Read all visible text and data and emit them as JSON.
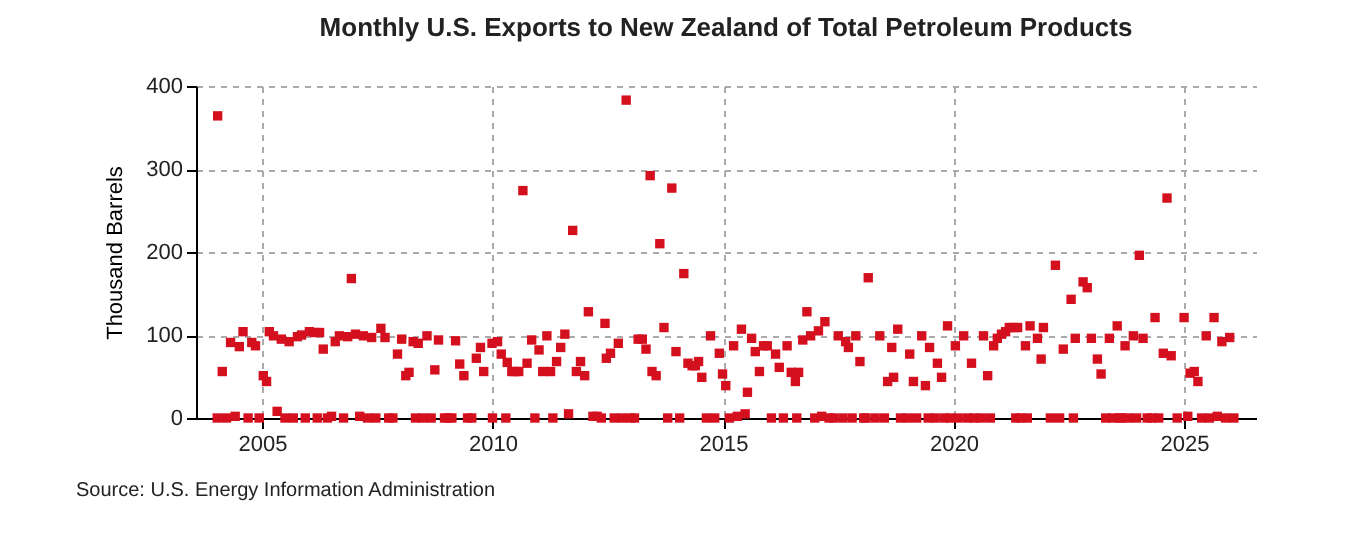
{
  "chart_data": {
    "type": "scatter",
    "title": "Monthly U.S. Exports to New Zealand of Total Petroleum Products",
    "ylabel": "Thousand Barrels",
    "annotations": [
      "Source: U.S. Energy Information Administration"
    ],
    "x": [
      2004.03,
      2004.04,
      2004.14,
      2004.23,
      2004.32,
      2004.42,
      2004.51,
      2004.59,
      2004.7,
      2004.78,
      2004.86,
      2004.94,
      2005.03,
      2005.1,
      2005.16,
      2005.25,
      2005.33,
      2005.42,
      2005.5,
      2005.59,
      2005.68,
      2005.77,
      2005.86,
      2005.94,
      2006.03,
      2006.14,
      2006.2,
      2006.25,
      2006.33,
      2006.42,
      2006.51,
      2006.59,
      2006.68,
      2006.77,
      2006.86,
      2006.94,
      2007.03,
      2007.12,
      2007.2,
      2007.29,
      2007.38,
      2007.47,
      2007.58,
      2007.67,
      2007.75,
      2007.84,
      2007.94,
      2008.03,
      2008.12,
      2008.19,
      2008.28,
      2008.33,
      2008.39,
      2008.49,
      2008.58,
      2008.67,
      2008.75,
      2008.83,
      2008.96,
      2009.04,
      2009.12,
      2009.2,
      2009.29,
      2009.38,
      2009.46,
      2009.55,
      2009.65,
      2009.74,
      2009.81,
      2009.99,
      2010.0,
      2010.11,
      2010.19,
      2010.29,
      2010.32,
      2010.42,
      2010.49,
      2010.57,
      2010.66,
      2010.75,
      2010.85,
      2010.92,
      2011.01,
      2011.09,
      2011.18,
      2011.26,
      2011.31,
      2011.39,
      2011.48,
      2011.57,
      2011.65,
      2011.74,
      2011.82,
      2011.91,
      2012.0,
      2012.08,
      2012.18,
      2012.27,
      2012.36,
      2012.44,
      2012.47,
      2012.56,
      2012.64,
      2012.73,
      2012.81,
      2012.9,
      2012.99,
      2013.08,
      2013.16,
      2013.25,
      2013.33,
      2013.42,
      2013.46,
      2013.55,
      2013.63,
      2013.72,
      2013.8,
      2013.89,
      2013.98,
      2014.06,
      2014.15,
      2014.24,
      2014.33,
      2014.4,
      2014.47,
      2014.54,
      2014.64,
      2014.73,
      2014.82,
      2014.92,
      2014.99,
      2015.06,
      2015.14,
      2015.23,
      2015.31,
      2015.4,
      2015.48,
      2015.53,
      2015.62,
      2015.7,
      2015.79,
      2015.88,
      2015.96,
      2016.05,
      2016.14,
      2016.22,
      2016.31,
      2016.39,
      2016.48,
      2016.57,
      2016.6,
      2016.64,
      2016.73,
      2016.82,
      2016.9,
      2016.99,
      2017.07,
      2017.14,
      2017.21,
      2017.3,
      2017.4,
      2017.5,
      2017.6,
      2017.66,
      2017.72,
      2017.8,
      2017.88,
      2017.97,
      2018.05,
      2018.1,
      2018.15,
      2018.3,
      2018.4,
      2018.5,
      2018.57,
      2018.66,
      2018.7,
      2018.79,
      2018.85,
      2019.0,
      2019.05,
      2019.13,
      2019.2,
      2019.31,
      2019.39,
      2019.45,
      2019.48,
      2019.6,
      2019.65,
      2019.74,
      2019.8,
      2019.87,
      2019.93,
      2020.04,
      2020.1,
      2020.22,
      2020.3,
      2020.39,
      2020.45,
      2020.6,
      2020.65,
      2020.74,
      2020.8,
      2020.87,
      2020.95,
      2021.04,
      2021.13,
      2021.21,
      2021.3,
      2021.35,
      2021.39,
      2021.45,
      2021.56,
      2021.6,
      2021.66,
      2021.82,
      2021.9,
      2021.95,
      2022.1,
      2022.21,
      2022.3,
      2022.38,
      2022.55,
      2022.6,
      2022.64,
      2022.81,
      2022.9,
      2022.99,
      2023.12,
      2023.2,
      2023.3,
      2023.38,
      2023.45,
      2023.55,
      2023.6,
      2023.65,
      2023.72,
      2023.8,
      2023.9,
      2023.97,
      2024.03,
      2024.11,
      2024.2,
      2024.3,
      2024.37,
      2024.45,
      2024.55,
      2024.63,
      2024.72,
      2024.85,
      2025.0,
      2025.08,
      2025.13,
      2025.22,
      2025.3,
      2025.38,
      2025.48,
      2025.55,
      2025.65,
      2025.72,
      2025.82,
      2025.9,
      2025.99,
      2026.08
    ],
    "values": [
      0,
      364,
      56,
      0,
      91,
      2,
      86,
      104,
      0,
      91,
      87,
      0,
      51,
      44,
      104,
      99,
      8,
      95,
      0,
      92,
      0,
      98,
      100,
      0,
      104,
      103,
      0,
      103,
      83,
      0,
      2,
      92,
      99,
      0,
      98,
      168,
      101,
      2,
      99,
      0,
      97,
      0,
      108,
      97,
      0,
      0,
      77,
      95,
      51,
      55,
      92,
      0,
      90,
      0,
      99,
      0,
      58,
      94,
      0,
      0,
      0,
      93,
      65,
      51,
      0,
      0,
      72,
      85,
      56,
      90,
      0,
      92,
      77,
      0,
      67,
      56,
      56,
      56,
      274,
      66,
      94,
      0,
      82,
      56,
      99,
      56,
      0,
      68,
      85,
      101,
      5,
      226,
      56,
      68,
      51,
      128,
      2,
      2,
      0,
      114,
      72,
      78,
      0,
      90,
      0,
      383,
      0,
      0,
      95,
      95,
      83,
      292,
      56,
      51,
      210,
      109,
      0,
      277,
      80,
      0,
      174,
      66,
      63,
      63,
      68,
      49,
      0,
      99,
      0,
      78,
      53,
      39,
      0,
      87,
      2,
      107,
      5,
      31,
      96,
      80,
      56,
      87,
      87,
      0,
      77,
      61,
      0,
      87,
      55,
      44,
      0,
      55,
      94,
      128,
      99,
      0,
      105,
      2,
      116,
      0,
      0,
      99,
      0,
      92,
      85,
      0,
      99,
      68,
      0,
      0,
      169,
      0,
      99,
      0,
      44,
      85,
      49,
      107,
      0,
      0,
      77,
      44,
      0,
      99,
      39,
      0,
      85,
      0,
      66,
      49,
      0,
      111,
      0,
      87,
      0,
      99,
      0,
      66,
      0,
      0,
      99,
      51,
      0,
      87,
      96,
      101,
      104,
      109,
      109,
      0,
      109,
      0,
      87,
      0,
      111,
      96,
      71,
      109,
      0,
      184,
      0,
      83,
      143,
      0,
      96,
      164,
      157,
      96,
      71,
      53,
      0,
      96,
      0,
      111,
      0,
      0,
      87,
      0,
      99,
      0,
      196,
      96,
      0,
      0,
      121,
      0,
      78,
      265,
      75,
      0,
      121,
      2,
      54,
      56,
      44,
      0,
      99,
      0,
      121,
      2,
      92,
      0,
      97,
      0
    ],
    "color": "#d4101e",
    "marker": "square",
    "xlim": [
      2003.57,
      2026.56
    ],
    "xticks": [
      2005,
      2010,
      2015,
      2020,
      2025
    ],
    "ylim": [
      0,
      400
    ],
    "yticks": [
      0,
      100,
      200,
      300,
      400
    ],
    "grid": true
  }
}
